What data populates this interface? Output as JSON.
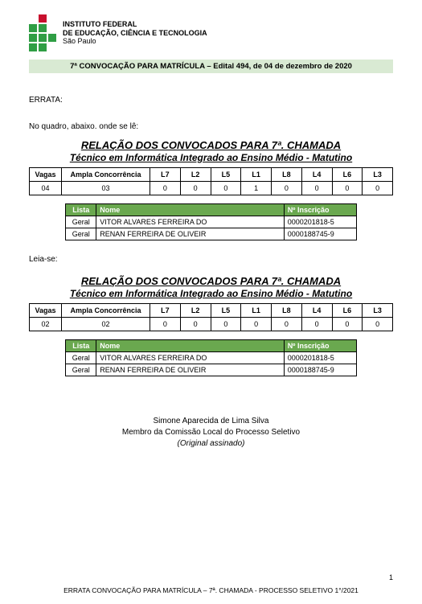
{
  "institution": {
    "line1": "INSTITUTO FEDERAL",
    "line2": "DE EDUCAÇÃO, CIÊNCIA E TECNOLOGIA",
    "line3": "São Paulo",
    "logo_colors": {
      "red": "#c8102e",
      "green": "#2f9e44"
    }
  },
  "banner": "7ª CONVOCAÇÃO PARA MATRÍCULA – Edital 494, de 04 de dezembro de 2020",
  "errata_label": "ERRATA:",
  "intro": "No quadro, abaixo. onde se lê:",
  "leia": "Leia-se:",
  "section": {
    "title": "RELAÇÃO DOS CONVOCADOS PARA 7ª. CHAMADA",
    "subtitle": "Técnico em Informática Integrado ao Ensino Médio - Matutino"
  },
  "vagas_headers": [
    "Vagas",
    "Ampla Concorrência",
    "L7",
    "L2",
    "L5",
    "L1",
    "L8",
    "L4",
    "L6",
    "L3"
  ],
  "vagas_a": [
    "04",
    "03",
    "0",
    "0",
    "0",
    "1",
    "0",
    "0",
    "0",
    "0"
  ],
  "vagas_b": [
    "02",
    "02",
    "0",
    "0",
    "0",
    "0",
    "0",
    "0",
    "0",
    "0"
  ],
  "nomes_headers": {
    "lista": "Lista",
    "nome": "Nome",
    "insc": "Nº Inscrição"
  },
  "nomes_rows": [
    {
      "lista": "Geral",
      "nome": "VITOR ALVARES FERREIRA DO",
      "insc": "0000201818-5"
    },
    {
      "lista": "Geral",
      "nome": "RENAN FERREIRA DE OLIVEIR",
      "insc": "0000188745-9"
    }
  ],
  "signature": {
    "nome": "Simone Aparecida de Lima Silva",
    "cargo": "Membro da Comissão Local do Processo Seletivo",
    "orig": "(Original assinado)"
  },
  "page_num": "1",
  "footer": "ERRATA CONVOCAÇÃO PARA MATRÍCULA – 7ª. CHAMADA - PROCESSO SELETIVO 1°/2021"
}
